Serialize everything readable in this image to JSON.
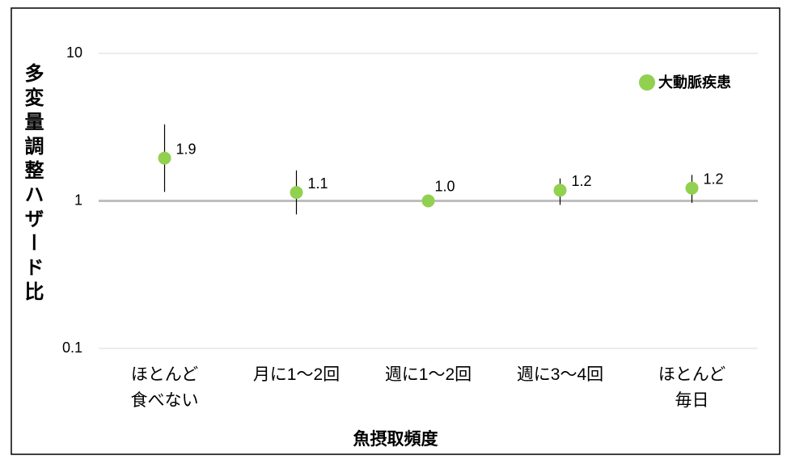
{
  "chart_data": {
    "type": "errorbar",
    "categories": [
      "ほとんど\n食べない",
      "月に1～2回",
      "週に1～2回",
      "週に3～4回",
      "ほとんど\n毎日"
    ],
    "series": [
      {
        "name": "大動脈疾患",
        "color": "#92d050",
        "values": [
          1.95,
          1.14,
          1.0,
          1.18,
          1.22
        ],
        "value_labels": [
          "1.9",
          "1.1",
          "1.0",
          "1.2",
          "1.2"
        ],
        "lower": [
          1.15,
          0.81,
          null,
          0.94,
          0.97
        ],
        "upper": [
          3.3,
          1.61,
          null,
          1.42,
          1.5
        ]
      }
    ],
    "x_label": "魚摂取頻度",
    "y_label": "多変量調整ハザード比",
    "ylim": [
      0.1,
      10
    ],
    "yticks": [
      10,
      1,
      0.1
    ],
    "log_scale": true,
    "grid": true,
    "reference_line": 1,
    "legend": "top-right"
  }
}
